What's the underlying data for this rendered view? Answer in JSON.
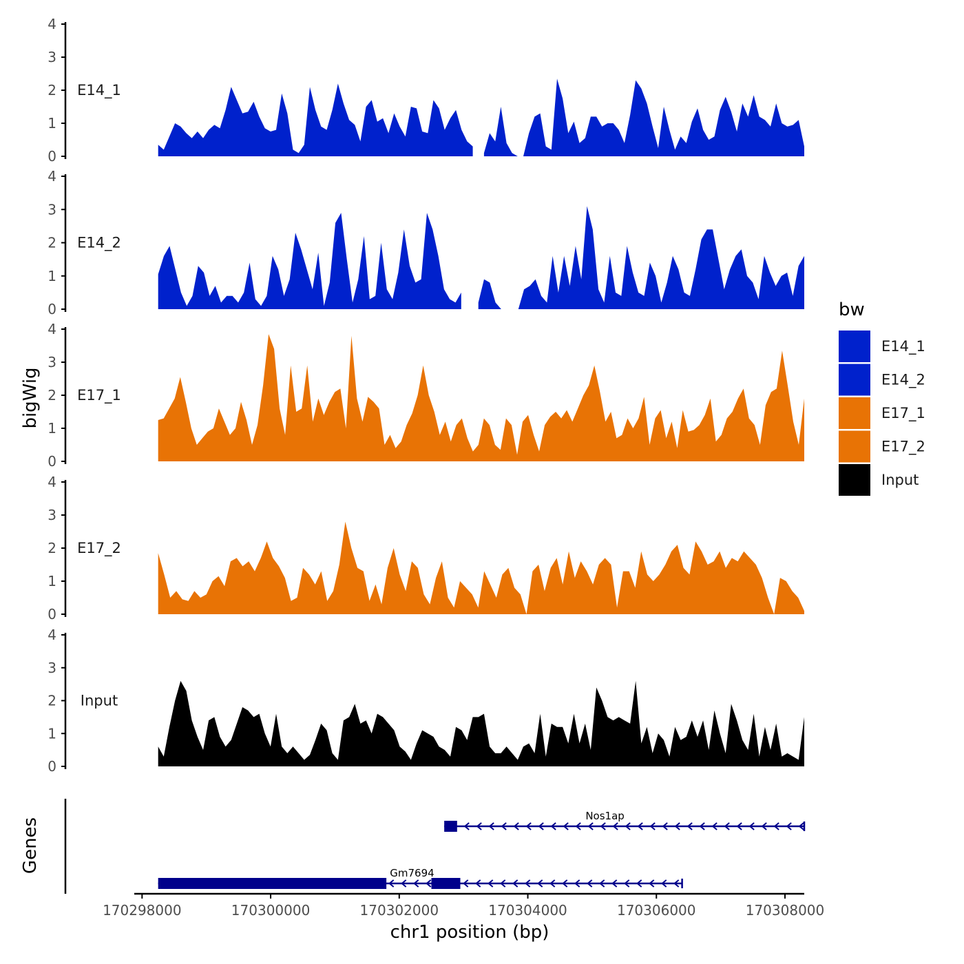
{
  "chart_data": {
    "type": "area",
    "ylabel": "bigWig",
    "xlabel": "chr1 position (bp)",
    "xlim": [
      170297900,
      170308300
    ],
    "x_ticks": [
      170298000,
      170300000,
      170302000,
      170304000,
      170306000,
      170308000
    ],
    "ylim": [
      0,
      4
    ],
    "y_ticks": [
      0,
      1,
      2,
      3,
      4
    ],
    "data_range": [
      170298250,
      170308300
    ],
    "legend": {
      "title": "bw",
      "entries": [
        {
          "label": "E14_1",
          "color": "#0021CC"
        },
        {
          "label": "E14_2",
          "color": "#0021CC"
        },
        {
          "label": "E17_1",
          "color": "#E87305"
        },
        {
          "label": "E17_2",
          "color": "#E87305"
        },
        {
          "label": "Input",
          "color": "#000000"
        }
      ]
    },
    "series": [
      {
        "name": "E14_1",
        "color": "#0021CC",
        "gap": [
          170303150,
          170303300
        ],
        "values": [
          0.35,
          0.2,
          0.6,
          1.0,
          0.9,
          0.7,
          0.55,
          0.75,
          0.55,
          0.8,
          0.95,
          0.85,
          1.4,
          2.1,
          1.7,
          1.3,
          1.35,
          1.65,
          1.2,
          0.85,
          0.75,
          0.8,
          1.9,
          1.3,
          0.2,
          0.1,
          0.35,
          2.1,
          1.4,
          0.9,
          0.8,
          1.4,
          2.2,
          1.6,
          1.1,
          0.95,
          0.45,
          1.5,
          1.7,
          1.05,
          1.15,
          0.7,
          1.3,
          0.9,
          0.6,
          1.5,
          1.45,
          0.75,
          0.7,
          1.7,
          1.45,
          0.8,
          1.15,
          1.4,
          0.8,
          0.45,
          0.3,
          0.85,
          0.1,
          0.7,
          0.45,
          1.5,
          0.4,
          0.1,
          0.0,
          0.0,
          0.7,
          1.2,
          1.3,
          0.3,
          0.2,
          2.35,
          1.75,
          0.7,
          1.05,
          0.4,
          0.55,
          1.2,
          1.2,
          0.9,
          1.0,
          1.0,
          0.8,
          0.4,
          1.25,
          2.3,
          2.05,
          1.6,
          0.9,
          0.25,
          1.5,
          0.8,
          0.2,
          0.6,
          0.4,
          1.05,
          1.45,
          0.8,
          0.5,
          0.6,
          1.4,
          1.8,
          1.35,
          0.75,
          1.6,
          1.2,
          1.85,
          1.2,
          1.1,
          0.9,
          1.6,
          1.0,
          0.9,
          0.95,
          1.1,
          0.3
        ]
      },
      {
        "name": "E14_2",
        "color": "#0021CC",
        "gap": [
          170303000,
          170303180
        ],
        "values": [
          1.05,
          1.6,
          1.9,
          1.2,
          0.5,
          0.1,
          0.4,
          1.3,
          1.1,
          0.4,
          0.7,
          0.2,
          0.4,
          0.4,
          0.2,
          0.5,
          1.4,
          0.3,
          0.1,
          0.4,
          1.6,
          1.2,
          0.4,
          0.9,
          2.3,
          1.8,
          1.2,
          0.6,
          1.7,
          0.1,
          0.8,
          2.6,
          2.9,
          1.5,
          0.2,
          0.9,
          2.2,
          0.3,
          0.4,
          2.0,
          0.6,
          0.3,
          1.1,
          2.4,
          1.3,
          0.8,
          0.9,
          2.9,
          2.4,
          1.6,
          0.6,
          0.3,
          0.2,
          0.5,
          0.8,
          0.5,
          0.2,
          0.9,
          0.8,
          0.2,
          0.0,
          0.0,
          0.0,
          0.0,
          0.6,
          0.7,
          0.9,
          0.4,
          0.2,
          1.6,
          0.5,
          1.6,
          0.7,
          1.9,
          0.9,
          3.1,
          2.4,
          0.6,
          0.2,
          1.6,
          0.5,
          0.4,
          1.9,
          1.1,
          0.5,
          0.4,
          1.4,
          1.0,
          0.2,
          0.8,
          1.6,
          1.2,
          0.5,
          0.4,
          1.2,
          2.1,
          2.4,
          2.4,
          1.5,
          0.6,
          1.2,
          1.6,
          1.8,
          1.0,
          0.8,
          0.3,
          1.6,
          1.1,
          0.7,
          1.0,
          1.1,
          0.4,
          1.3,
          1.6
        ]
      },
      {
        "name": "E17_1",
        "color": "#E87305",
        "values": [
          1.25,
          1.3,
          1.6,
          1.9,
          2.55,
          1.8,
          1.0,
          0.5,
          0.7,
          0.9,
          1.0,
          1.6,
          1.2,
          0.8,
          1.0,
          1.8,
          1.25,
          0.5,
          1.1,
          2.3,
          3.85,
          3.4,
          1.6,
          0.8,
          2.9,
          1.5,
          1.6,
          2.9,
          1.2,
          1.9,
          1.4,
          1.8,
          2.1,
          2.2,
          1.0,
          3.8,
          1.9,
          1.2,
          1.95,
          1.8,
          1.6,
          0.5,
          0.8,
          0.4,
          0.6,
          1.1,
          1.45,
          2.0,
          2.9,
          2.0,
          1.5,
          0.8,
          1.2,
          0.6,
          1.1,
          1.3,
          0.7,
          0.3,
          0.5,
          1.3,
          1.1,
          0.5,
          0.35,
          1.3,
          1.1,
          0.2,
          1.2,
          1.4,
          0.8,
          0.3,
          1.1,
          1.35,
          1.5,
          1.3,
          1.55,
          1.2,
          1.6,
          2.0,
          2.3,
          2.9,
          2.1,
          1.2,
          1.5,
          0.7,
          0.8,
          1.3,
          1.0,
          1.3,
          1.95,
          0.5,
          1.3,
          1.55,
          0.7,
          1.2,
          0.4,
          1.55,
          0.9,
          0.95,
          1.1,
          1.4,
          1.9,
          0.6,
          0.8,
          1.3,
          1.5,
          1.9,
          2.2,
          1.3,
          1.1,
          0.5,
          1.7,
          2.1,
          2.2,
          3.35,
          2.3,
          1.2,
          0.5,
          1.9
        ]
      },
      {
        "name": "E17_2",
        "color": "#E87305",
        "values": [
          1.85,
          1.2,
          0.5,
          0.7,
          0.45,
          0.4,
          0.7,
          0.5,
          0.6,
          1.0,
          1.15,
          0.85,
          1.6,
          1.7,
          1.45,
          1.6,
          1.3,
          1.7,
          2.2,
          1.7,
          1.45,
          1.1,
          0.4,
          0.5,
          1.4,
          1.2,
          0.9,
          1.3,
          0.4,
          0.7,
          1.5,
          2.8,
          2.0,
          1.4,
          1.3,
          0.4,
          0.9,
          0.3,
          1.4,
          2.0,
          1.2,
          0.7,
          1.6,
          1.4,
          0.6,
          0.3,
          1.1,
          1.6,
          0.5,
          0.2,
          1.0,
          0.8,
          0.6,
          0.2,
          1.3,
          0.9,
          0.5,
          1.2,
          1.4,
          0.8,
          0.6,
          0.0,
          1.3,
          1.5,
          0.7,
          1.4,
          1.7,
          0.9,
          1.9,
          1.1,
          1.6,
          1.3,
          0.9,
          1.5,
          1.7,
          1.5,
          0.2,
          1.3,
          1.3,
          0.8,
          1.9,
          1.2,
          1.0,
          1.2,
          1.5,
          1.9,
          2.1,
          1.4,
          1.2,
          2.2,
          1.9,
          1.5,
          1.6,
          1.9,
          1.4,
          1.7,
          1.6,
          1.9,
          1.7,
          1.5,
          1.1,
          0.5,
          0.0,
          1.1,
          1.0,
          0.7,
          0.5,
          0.1
        ]
      },
      {
        "name": "Input",
        "color": "#000000",
        "values": [
          0.6,
          0.3,
          1.2,
          2.0,
          2.6,
          2.3,
          1.4,
          0.9,
          0.5,
          1.4,
          1.5,
          0.9,
          0.6,
          0.8,
          1.3,
          1.8,
          1.7,
          1.5,
          1.6,
          1.0,
          0.6,
          1.6,
          0.6,
          0.4,
          0.6,
          0.4,
          0.2,
          0.35,
          0.8,
          1.3,
          1.1,
          0.4,
          0.2,
          1.4,
          1.5,
          1.9,
          1.3,
          1.4,
          1.0,
          1.6,
          1.5,
          1.3,
          1.1,
          0.6,
          0.45,
          0.2,
          0.7,
          1.1,
          1.0,
          0.9,
          0.6,
          0.5,
          0.3,
          1.2,
          1.1,
          0.8,
          1.5,
          1.5,
          1.6,
          0.6,
          0.4,
          0.4,
          0.6,
          0.4,
          0.2,
          0.6,
          0.7,
          0.4,
          1.6,
          0.3,
          1.3,
          1.2,
          1.2,
          0.7,
          1.6,
          0.7,
          1.3,
          0.5,
          2.4,
          2.0,
          1.5,
          1.4,
          1.5,
          1.4,
          1.3,
          2.6,
          0.7,
          1.2,
          0.4,
          1.0,
          0.8,
          0.3,
          1.2,
          0.8,
          0.9,
          1.4,
          0.9,
          1.4,
          0.5,
          1.7,
          1.0,
          0.4,
          1.9,
          1.4,
          0.8,
          0.5,
          1.6,
          0.3,
          1.2,
          0.5,
          1.3,
          0.3,
          0.4,
          0.3,
          0.2,
          1.5
        ]
      }
    ],
    "genes_track": {
      "title": "Genes",
      "genes": [
        {
          "name": "Nos1ap",
          "strand": "-",
          "start": 170302700,
          "end": 170308300,
          "exons": [
            [
              170302700,
              170302900
            ]
          ]
        },
        {
          "name": "Gm7694",
          "strand": "-",
          "start": 170298250,
          "end": 170306400,
          "exons": [
            [
              170298250,
              170301800
            ],
            [
              170302500,
              170302950
            ]
          ]
        }
      ]
    }
  }
}
